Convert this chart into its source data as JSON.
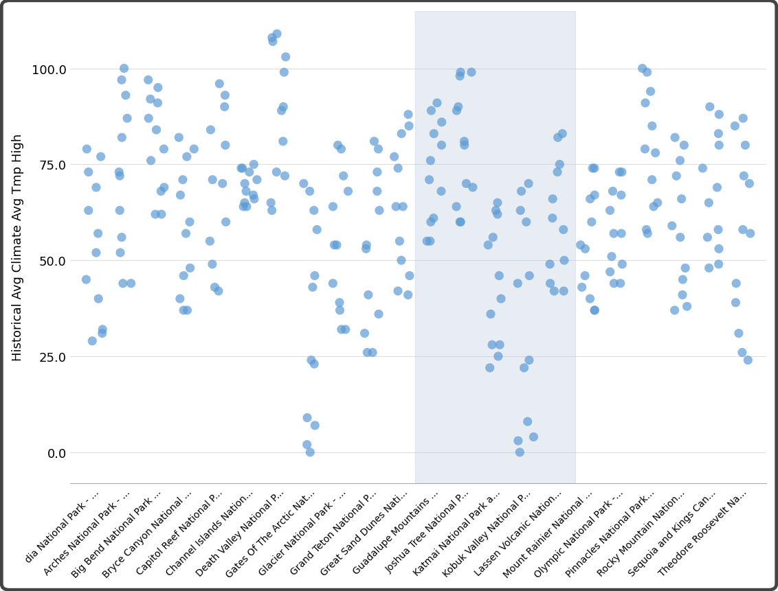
{
  "ylabel": "Historical Avg Climate Avg Tmp High",
  "yticks": [
    0.0,
    25.0,
    50.0,
    75.0,
    100.0
  ],
  "ylim": [
    -8,
    115
  ],
  "xlim": [
    -0.8,
    21.8
  ],
  "background_color": "#ffffff",
  "scatter_color": "#5B9BD5",
  "scatter_alpha": 0.7,
  "scatter_size": 90,
  "zoom_x_start": 10.4,
  "zoom_x_end": 15.6,
  "zoom_color": "#c5cde0",
  "zoom_alpha": 0.38,
  "park_names": [
    "dia National Park - ...",
    "Arches National Park - ...",
    "Big Bend National Park ...",
    "Bryce Canyon National ...",
    "Capitol Reef National P...",
    "Channel Islands Nation...",
    "Death Valley National P...",
    "Gates Of The Arctic Nat...",
    "Glacier National Park - ...",
    "Grand Teton National P...",
    "Great Sand Dunes Nati...",
    "Guadalupe Mountains ...",
    "Joshua Tree National P...",
    "Katmai National Park a...",
    "Kobuk Valley National P...",
    "Lassen Volcanic Nation...",
    "Mount Rainier National ...",
    "Olympic National Park -...",
    "Pinnacles National Park...",
    "Rocky Mountain Nation...",
    "Sequoia and Kings Can...",
    "Theodore Roosevelt Na..."
  ],
  "monthly_data": [
    [
      29,
      31,
      40,
      52,
      63,
      73,
      79,
      77,
      69,
      57,
      45,
      32
    ],
    [
      44,
      52,
      63,
      72,
      82,
      93,
      100,
      97,
      87,
      73,
      56,
      44
    ],
    [
      62,
      68,
      76,
      84,
      91,
      97,
      95,
      92,
      87,
      79,
      69,
      62
    ],
    [
      37,
      40,
      48,
      57,
      67,
      77,
      82,
      79,
      71,
      60,
      46,
      37
    ],
    [
      42,
      49,
      60,
      70,
      80,
      90,
      96,
      93,
      84,
      71,
      55,
      43
    ],
    [
      64,
      65,
      66,
      68,
      70,
      73,
      74,
      75,
      74,
      71,
      67,
      64
    ],
    [
      65,
      72,
      81,
      90,
      99,
      108,
      109,
      107,
      103,
      89,
      73,
      63
    ],
    [
      2,
      9,
      23,
      43,
      58,
      68,
      70,
      63,
      46,
      24,
      7,
      0
    ],
    [
      32,
      37,
      44,
      54,
      64,
      72,
      80,
      79,
      68,
      54,
      39,
      32
    ],
    [
      26,
      31,
      41,
      53,
      63,
      73,
      81,
      79,
      68,
      54,
      36,
      26
    ],
    [
      41,
      46,
      55,
      64,
      74,
      83,
      88,
      85,
      77,
      64,
      50,
      42
    ],
    [
      55,
      60,
      68,
      76,
      83,
      91,
      89,
      86,
      80,
      71,
      61,
      55
    ],
    [
      60,
      64,
      70,
      80,
      89,
      99,
      99,
      98,
      90,
      81,
      69,
      60
    ],
    [
      25,
      28,
      36,
      46,
      56,
      62,
      65,
      63,
      54,
      40,
      28,
      22
    ],
    [
      3,
      8,
      24,
      44,
      60,
      68,
      70,
      63,
      46,
      22,
      4,
      0
    ],
    [
      42,
      44,
      50,
      58,
      66,
      75,
      83,
      82,
      73,
      61,
      49,
      42
    ],
    [
      37,
      40,
      46,
      53,
      60,
      67,
      74,
      74,
      66,
      54,
      43,
      37
    ],
    [
      44,
      47,
      51,
      57,
      63,
      68,
      73,
      73,
      67,
      57,
      49,
      44
    ],
    [
      58,
      64,
      71,
      78,
      85,
      94,
      100,
      99,
      91,
      79,
      65,
      57
    ],
    [
      38,
      41,
      48,
      56,
      66,
      76,
      82,
      80,
      72,
      59,
      45,
      37
    ],
    [
      49,
      53,
      58,
      65,
      74,
      83,
      90,
      88,
      80,
      69,
      56,
      48
    ],
    [
      24,
      31,
      44,
      58,
      70,
      80,
      87,
      85,
      72,
      57,
      39,
      26
    ]
  ],
  "border_color": "#444444",
  "border_linewidth": 3.5,
  "grid_color": "#dddddd",
  "ytick_fontsize": 13,
  "ylabel_fontsize": 13,
  "xtick_fontsize": 10,
  "xtick_rotation": 45,
  "jitter_seed": 42,
  "jitter_amount": 0.28
}
